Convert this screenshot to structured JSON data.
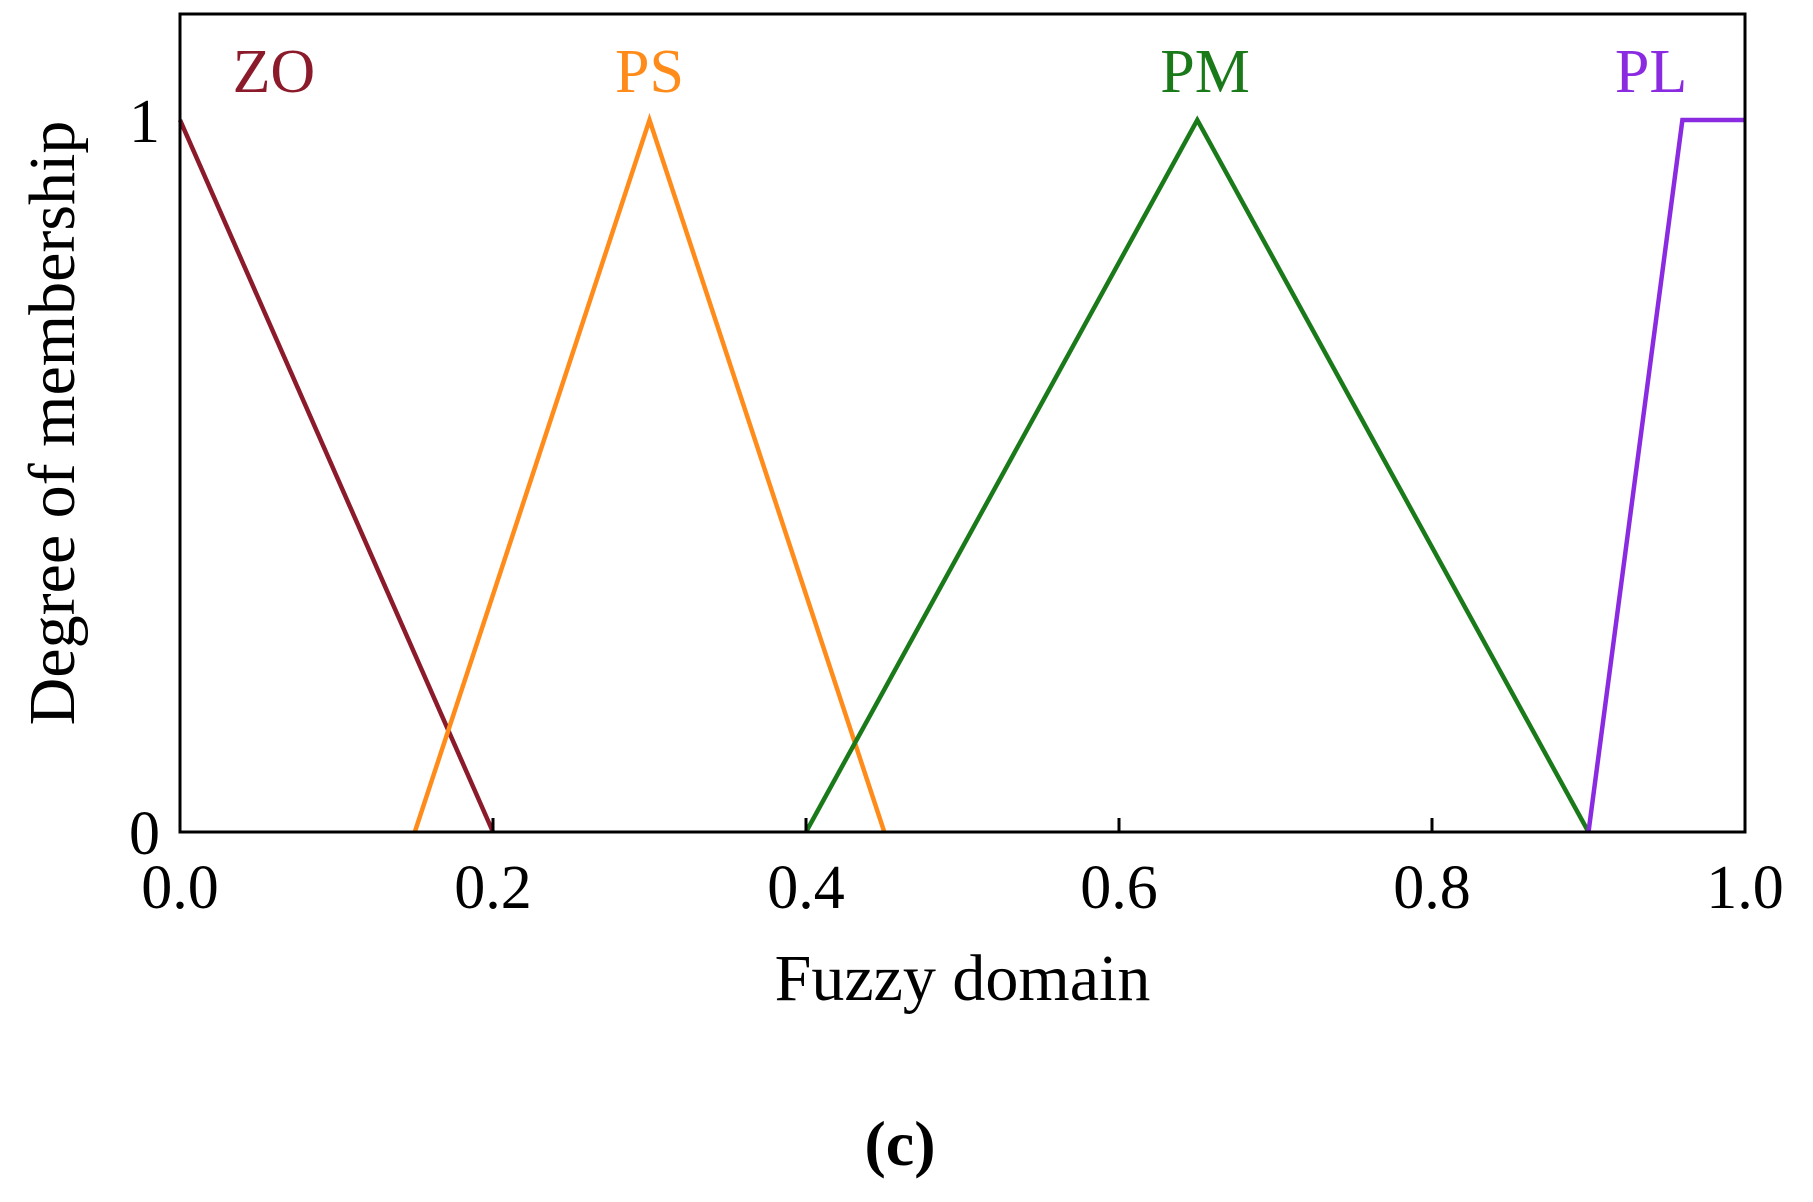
{
  "chart_data": {
    "type": "line",
    "title": "",
    "xlabel": "Fuzzy domain",
    "ylabel": "Degree of membership",
    "xlim": [
      0.0,
      1.0
    ],
    "ylim": [
      0,
      1
    ],
    "x_ticks": [
      0.0,
      0.2,
      0.4,
      0.6,
      0.8,
      1.0
    ],
    "x_tick_labels": [
      "0.0",
      "0.2",
      "0.4",
      "0.6",
      "0.8",
      "1.0"
    ],
    "y_ticks": [
      0,
      1
    ],
    "y_tick_labels": [
      "0",
      "1"
    ],
    "grid": false,
    "legend": "none",
    "series": [
      {
        "name": "ZO",
        "color": "#8B1A2B",
        "x": [
          0.0,
          0.2
        ],
        "y": [
          1,
          0
        ],
        "label_x": 0.06
      },
      {
        "name": "PS",
        "color": "#FF8C1A",
        "x": [
          0.15,
          0.3,
          0.45
        ],
        "y": [
          0,
          1,
          0
        ],
        "label_x": 0.3
      },
      {
        "name": "PM",
        "color": "#1A7A1A",
        "x": [
          0.4,
          0.65,
          0.9
        ],
        "y": [
          0,
          1,
          0
        ],
        "label_x": 0.655
      },
      {
        "name": "PL",
        "color": "#8A2BE2",
        "x": [
          0.9,
          0.96,
          1.0
        ],
        "y": [
          0,
          1,
          1
        ],
        "label_x": 0.94
      }
    ]
  },
  "panel_label": "(c)"
}
